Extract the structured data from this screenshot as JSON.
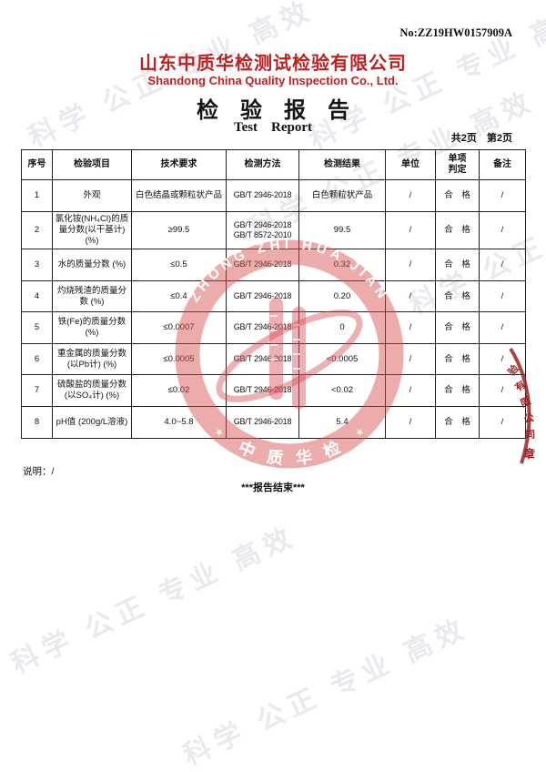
{
  "report": {
    "number": "No:ZZ19HW0157909A",
    "company_cn": "山东中质华检测试检验有限公司",
    "company_en": "Shandong China Quality Inspection Co., Ltd.",
    "title_cn": "检　验　报　告",
    "title_en": "Test    Report",
    "page_info": "共2页　第2页",
    "note_line": "说明：/",
    "end_line": "***报告结束***"
  },
  "watermark": {
    "text": "科学 公正 专业 高效"
  },
  "table": {
    "headers": [
      "序号",
      "检验项目",
      "技术要求",
      "检测方法",
      "检测结果",
      "单位",
      "单项\n判定",
      "备注"
    ],
    "rows": [
      {
        "no": "1",
        "item": "外观",
        "requirement": "白色结晶或颗粒状产品",
        "methods": [
          "GB/T 2946-2018"
        ],
        "result": "白色颗粒状产品",
        "unit": "/",
        "judgment": "合　格",
        "remark": "/"
      },
      {
        "no": "2",
        "item": "氯化铵(NH₄Cl)的质量分数(以干基计)(%)",
        "requirement": "≥99.5",
        "methods": [
          "GB/T 2946-2018",
          "GB/T 8572-2010"
        ],
        "result": "99.5",
        "unit": "/",
        "judgment": "合　格",
        "remark": "/"
      },
      {
        "no": "3",
        "item": "水的质量分数 (%)",
        "requirement": "≤0.5",
        "methods": [
          "GB/T 2946-2018"
        ],
        "result": "0.32",
        "unit": "/",
        "judgment": "合　格",
        "remark": "/"
      },
      {
        "no": "4",
        "item": "灼烧残渣的质量分数 (%)",
        "requirement": "≤0.4",
        "methods": [
          "GB/T 2946-2018"
        ],
        "result": "0.20",
        "unit": "/",
        "judgment": "合　格",
        "remark": "/"
      },
      {
        "no": "5",
        "item": "铁(Fe)的质量分数 (%)",
        "requirement": "≤0.0007",
        "methods": [
          "GB/T 2946-2018"
        ],
        "result": "0",
        "unit": "/",
        "judgment": "合　格",
        "remark": "/"
      },
      {
        "no": "6",
        "item": "重金属的质量分数(以Pb计) (%)",
        "requirement": "≤0.0005",
        "methods": [
          "GB/T 2946-2018"
        ],
        "result": "<0.0005",
        "unit": "/",
        "judgment": "合　格",
        "remark": "/"
      },
      {
        "no": "7",
        "item": "硫酸盐的质量分数(以SO₄计) (%)",
        "requirement": "≤0.02",
        "methods": [
          "GB/T 2946-2018"
        ],
        "result": "<0.02",
        "unit": "/",
        "judgment": "合　格",
        "remark": "/"
      },
      {
        "no": "8",
        "item": "pH值 (200g/L溶液)",
        "requirement": "4.0~5.8",
        "methods": [
          "GB/T 2946-2018"
        ],
        "result": "5.4",
        "unit": "/",
        "judgment": "合　格",
        "remark": "/"
      }
    ]
  },
  "stamp": {
    "ring_text": "ZHONG ZHI HUA JIAN",
    "cn_chars": [
      "中",
      "质",
      "华",
      "检"
    ],
    "color": "#d95252"
  },
  "edge_stamp": {
    "chars": [
      "验",
      "有",
      "限",
      "公",
      "司"
    ],
    "seal_char": "章",
    "color": "#9c2323"
  }
}
